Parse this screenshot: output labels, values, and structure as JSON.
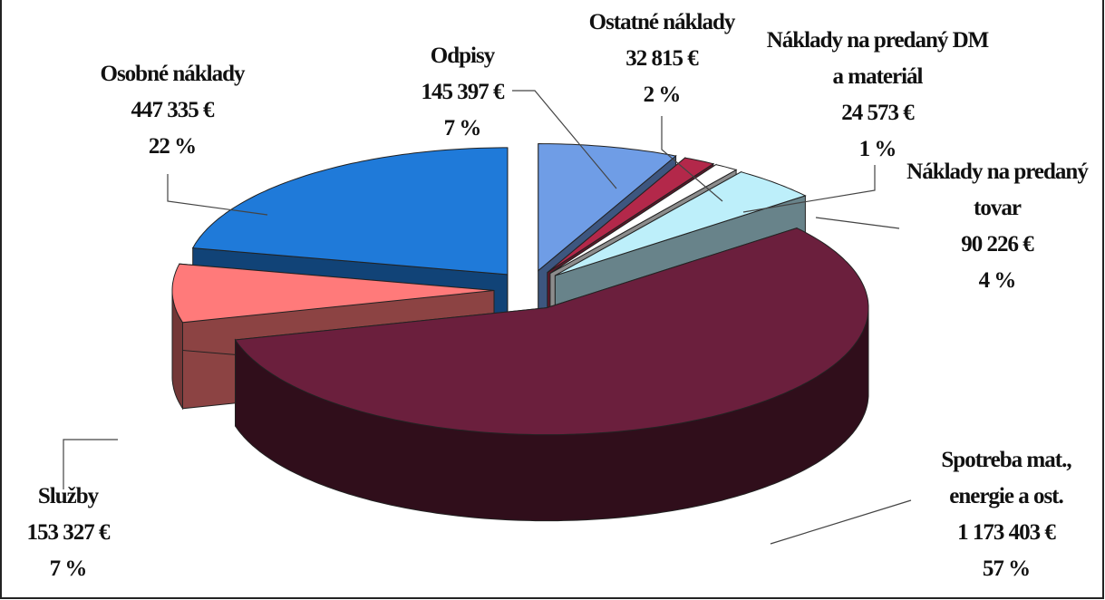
{
  "chart_data": {
    "type": "pie3d",
    "categories": [
      "Odpisy",
      "Ostatné náklady",
      "Náklady na predaný DM a materiál",
      "Náklady na predaný tovar",
      "Spotreba mat., energie a ost.",
      "Služby",
      "Osobné náklady"
    ],
    "values": [
      145397,
      32815,
      24573,
      90226,
      1173403,
      153327,
      447335
    ],
    "value_labels": [
      "145 397 €",
      "32 815 €",
      "24 573 €",
      "90 226 €",
      "1 173 403 €",
      "153 327 €",
      "447 335 €"
    ],
    "percentages": [
      7,
      2,
      1,
      4,
      57,
      7,
      22
    ],
    "percentage_labels": [
      "7 %",
      "2 %",
      "1 %",
      "4 %",
      "57 %",
      "7 %",
      "22 %"
    ],
    "colors": [
      "#6f9de6",
      "#b3284a",
      "#ffffff",
      "#bdeffa",
      "#6b1f3d",
      "#ff7a7a",
      "#1f7ad9"
    ]
  }
}
